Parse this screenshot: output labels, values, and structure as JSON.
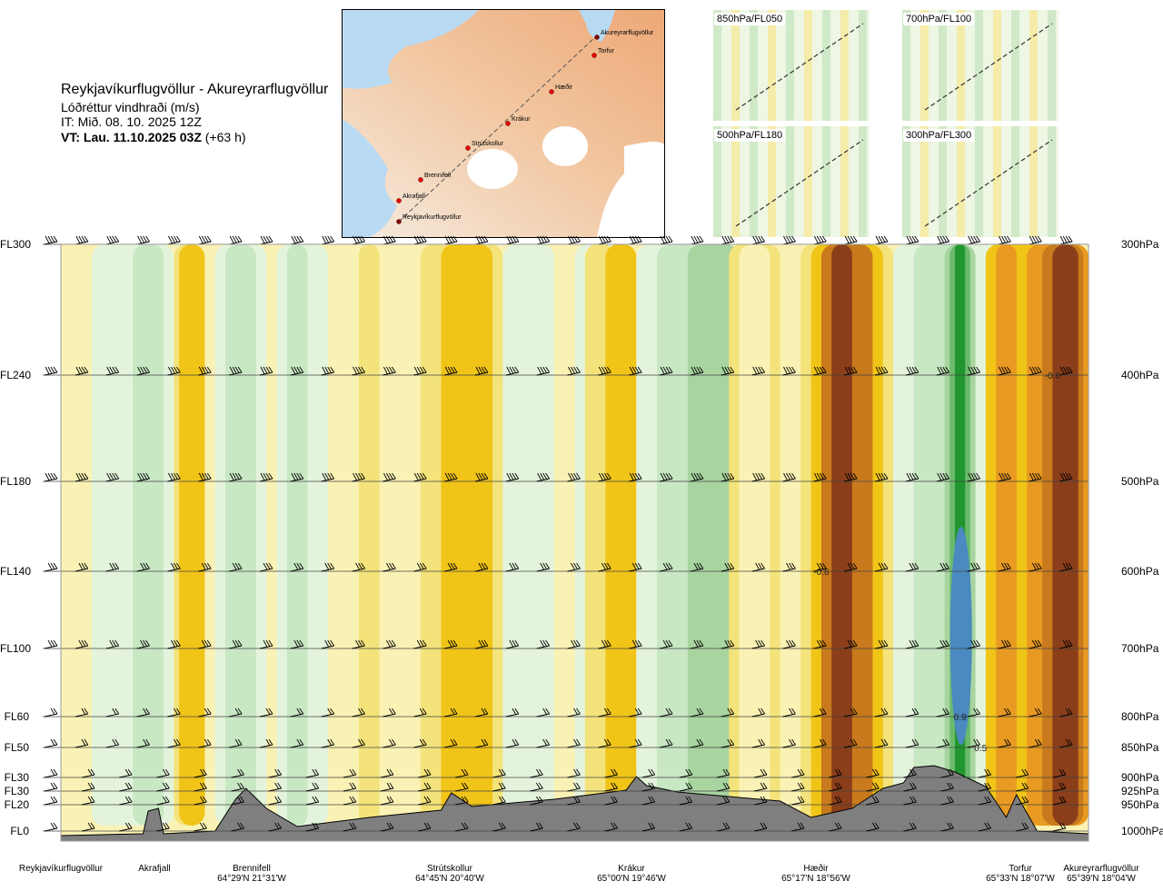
{
  "header": {
    "route": "Reykjavíkurflugvöllur - Akureyrarflugvöllur",
    "variable": "Lóðréttur vindhraði (m/s)",
    "issue": "IT: Mið. 08. 10. 2025 12Z",
    "valid_bold": "VT: Lau. 11.10.2025 03Z",
    "valid_lead": " (+63 h)"
  },
  "map": {
    "waypoints": [
      "Akureyrarflugvöllur",
      "Torfur",
      "Hæðir",
      "Krákur",
      "Strútskollur",
      "Brennifell",
      "Akrafjall",
      "Reykjavíkurflugvöllur"
    ]
  },
  "thumbnails": [
    {
      "label": "850hPa/FL050"
    },
    {
      "label": "700hPa/FL100"
    },
    {
      "label": "500hPa/FL180"
    },
    {
      "label": "300hPa/FL300"
    }
  ],
  "chart_data": {
    "type": "heatmap",
    "title": "Lóðréttur vindhraði (m/s)",
    "y_left_labels": [
      "FL300",
      "FL240",
      "FL180",
      "FL140",
      "FL100",
      "FL60",
      "FL50",
      "FL30",
      "FL30",
      "FL20",
      "FL0"
    ],
    "y_right_labels": [
      "300hPa",
      "400hPa",
      "500hPa",
      "600hPa",
      "700hPa",
      "800hPa",
      "850hPa",
      "900hPa",
      "925hPa",
      "950hPa",
      "1000hPa"
    ],
    "pressure_levels": [
      300,
      400,
      500,
      600,
      700,
      800,
      850,
      900,
      925,
      950,
      1000
    ],
    "contour_labels": [
      {
        "text": "-0.6",
        "dist": 0.965,
        "p": 400
      },
      {
        "text": "-0.6",
        "dist": 0.74,
        "p": 600
      },
      {
        "text": "0.9",
        "dist": 0.875,
        "p": 800
      },
      {
        "text": "0.5",
        "dist": 0.895,
        "p": 850
      }
    ],
    "stations": [
      {
        "name": "Reykjavíkurflugvöllur",
        "coords": "",
        "dist": 0.0
      },
      {
        "name": "Akrafjall",
        "coords": "",
        "dist": 0.09
      },
      {
        "name": "Brennifell",
        "coords": "64°29'N 21°31'W",
        "dist": 0.18
      },
      {
        "name": "Strútskollur",
        "coords": "64°45'N 20°40'W",
        "dist": 0.38
      },
      {
        "name": "Krákur",
        "coords": "65°00'N 19°46'W",
        "dist": 0.57
      },
      {
        "name": "Hæðir",
        "coords": "65°17'N 18°56'W",
        "dist": 0.75
      },
      {
        "name": "Torfur",
        "coords": "65°33'N 18°07'W",
        "dist": 0.93
      },
      {
        "name": "Akureyrarflugvöllur",
        "coords": "65°39'N 18°04'W",
        "dist": 1.0
      }
    ]
  },
  "colors": {
    "strong_down": "#8b3e1a",
    "mod_down": "#c87a1c",
    "down": "#e89a22",
    "weak_down": "#f1c418",
    "slight_down": "#f3e37a",
    "calm_down": "#faf2b4",
    "calm_up": "#e4f4dc",
    "slight_up": "#c8e8c4",
    "weak_up": "#a8d4a0",
    "up": "#6cba6c",
    "mod_up": "#22962e",
    "strong_up": "#4a8ac0",
    "terrain": "#7f7f7f"
  }
}
